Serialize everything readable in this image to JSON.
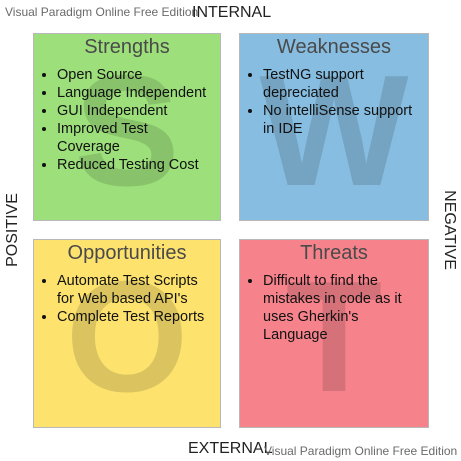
{
  "watermark": {
    "top": "Visual Paradigm Online Free Edition",
    "bottom": "Visual Paradigm Online Free Edition"
  },
  "axes": {
    "top": "INTERNAL",
    "bottom": "EXTERNAL",
    "left": "POSITIVE",
    "right": "NEGATIVE"
  },
  "colors": {
    "strengths": "#9de07b",
    "weaknesses": "#87bde0",
    "opportunities": "#fde36e",
    "threats": "#f6838c"
  },
  "quadrants": {
    "strengths": {
      "title": "Strengths",
      "letter": "S",
      "items": [
        "Open Source",
        "Language Independent",
        "GUI Independent",
        "Improved Test Coverage",
        "Reduced Testing Cost"
      ]
    },
    "weaknesses": {
      "title": "Weaknesses",
      "letter": "W",
      "items": [
        "TestNG support depreciated",
        "No intelliSense support in IDE"
      ]
    },
    "opportunities": {
      "title": "Opportunities",
      "letter": "O",
      "items": [
        "Automate Test Scripts for Web based API's",
        "Complete Test Reports"
      ]
    },
    "threats": {
      "title": "Threats",
      "letter": "T",
      "items": [
        "Difficult to find the mistakes in code as it uses Gherkin's Language"
      ]
    }
  }
}
